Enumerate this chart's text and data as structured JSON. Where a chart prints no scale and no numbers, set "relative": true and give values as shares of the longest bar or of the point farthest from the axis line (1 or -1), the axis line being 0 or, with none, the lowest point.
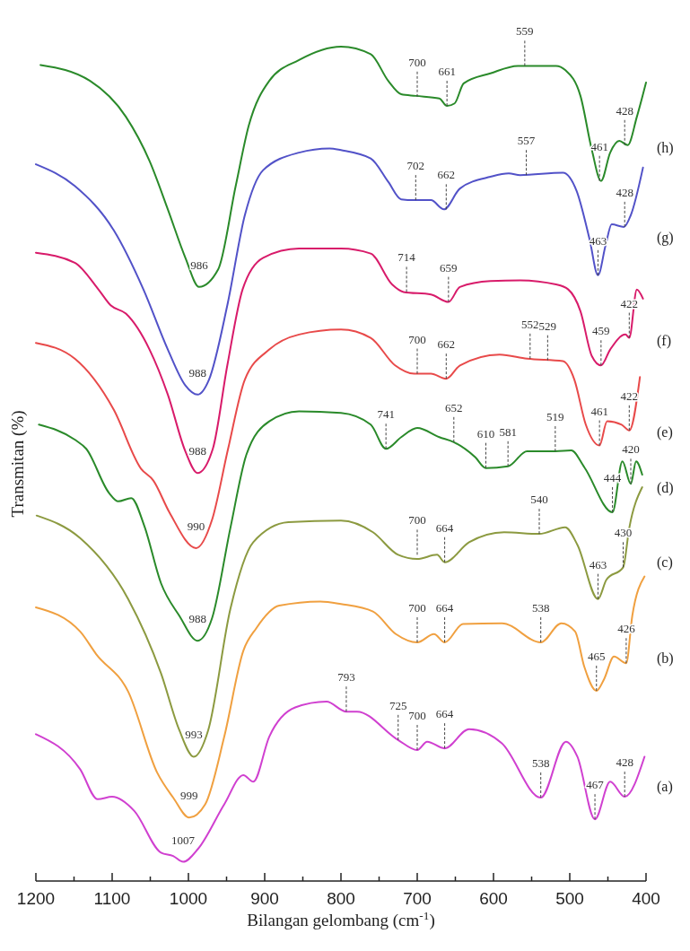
{
  "chart_data": {
    "type": "line",
    "relative": true,
    "xlabel": "Bilangan gelombang (cm$^{-1}$)",
    "ylabel": "Transmitan (%)",
    "xlim": [
      1200,
      400
    ],
    "xticks": [
      1200,
      {
        "value": 1150,
        "label": null
      },
      1100,
      {
        "value": 1050,
        "label": null
      },
      1000,
      {
        "value": 950,
        "label": null
      },
      900,
      {
        "value": 850,
        "label": null
      },
      800,
      {
        "value": 750,
        "label": null
      },
      700,
      {
        "value": 650,
        "label": null
      },
      600,
      {
        "value": 550,
        "label": null
      },
      500,
      {
        "value": 450,
        "label": null
      },
      400
    ],
    "grid": false,
    "marker": "none",
    "line_style": "solid",
    "series": [
      {
        "name": "(a)",
        "color": "#d040d0",
        "x": [
          1200,
          1142,
          1119,
          1100,
          1071,
          1036,
          1020,
          1007,
          987,
          953,
          928,
          915,
          894,
          860,
          819,
          793,
          779,
          725,
          700,
          687,
          664,
          632,
          589,
          538,
          505,
          490,
          467,
          447,
          428,
          402
        ],
        "values": [
          0.176,
          0.134,
          0.098,
          0.101,
          0.084,
          0.034,
          0.03,
          0.023,
          0.039,
          0.092,
          0.127,
          0.119,
          0.173,
          0.208,
          0.215,
          0.203,
          0.203,
          0.169,
          0.157,
          0.167,
          0.159,
          0.182,
          0.165,
          0.1,
          0.167,
          0.149,
          0.074,
          0.119,
          0.101,
          0.149
        ]
      },
      {
        "name": "(b)",
        "color": "#f0a040",
        "x": [
          1200,
          1142,
          1121,
          1079,
          1041,
          1020,
          999,
          978,
          953,
          928,
          911,
          881,
          827,
          800,
          758,
          728,
          700,
          678,
          664,
          640,
          589,
          538,
          511,
          493,
          481,
          465,
          455,
          442,
          426,
          418,
          402
        ],
        "values": [
          0.328,
          0.299,
          0.272,
          0.227,
          0.13,
          0.1,
          0.076,
          0.092,
          0.173,
          0.276,
          0.303,
          0.33,
          0.335,
          0.332,
          0.323,
          0.296,
          0.286,
          0.296,
          0.286,
          0.308,
          0.309,
          0.286,
          0.309,
          0.299,
          0.257,
          0.228,
          0.242,
          0.269,
          0.261,
          0.318,
          0.365
        ]
      },
      {
        "name": "(c)",
        "color": "#8c9a40",
        "x": [
          1199,
          1142,
          1079,
          1036,
          1012,
          993,
          974,
          945,
          915,
          869,
          800,
          758,
          725,
          700,
          674,
          664,
          632,
          586,
          540,
          506,
          490,
          463,
          452,
          430,
          422,
          405
        ],
        "values": [
          0.438,
          0.411,
          0.338,
          0.249,
          0.181,
          0.149,
          0.181,
          0.326,
          0.406,
          0.43,
          0.432,
          0.418,
          0.391,
          0.386,
          0.391,
          0.382,
          0.406,
          0.418,
          0.416,
          0.424,
          0.403,
          0.338,
          0.361,
          0.376,
          0.423,
          0.472
        ]
      },
      {
        "name": "(d)",
        "color": "#2a8a2a",
        "x": [
          1196,
          1149,
          1134,
          1104,
          1092,
          1075,
          1058,
          1036,
          1012,
          988,
          969,
          945,
          924,
          894,
          855,
          800,
          761,
          741,
          721,
          700,
          671,
          652,
          624,
          610,
          581,
          556,
          519,
          498,
          481,
          444,
          431,
          420,
          413,
          405
        ],
        "values": [
          0.547,
          0.529,
          0.518,
          0.465,
          0.455,
          0.459,
          0.426,
          0.357,
          0.318,
          0.288,
          0.315,
          0.423,
          0.511,
          0.551,
          0.563,
          0.561,
          0.547,
          0.518,
          0.532,
          0.543,
          0.532,
          0.526,
          0.508,
          0.495,
          0.497,
          0.515,
          0.515,
          0.516,
          0.496,
          0.442,
          0.503,
          0.476,
          0.503,
          0.487
        ]
      },
      {
        "name": "(e)",
        "color": "#e84a4a",
        "x": [
          1200,
          1149,
          1098,
          1062,
          1046,
          1025,
          990,
          969,
          948,
          926,
          894,
          855,
          800,
          761,
          729,
          704,
          682,
          662,
          644,
          592,
          556,
          509,
          494,
          479,
          461,
          451,
          432,
          422,
          408
        ],
        "values": [
          0.645,
          0.626,
          0.565,
          0.494,
          0.48,
          0.442,
          0.399,
          0.433,
          0.518,
          0.601,
          0.637,
          0.655,
          0.661,
          0.651,
          0.618,
          0.608,
          0.608,
          0.602,
          0.618,
          0.631,
          0.626,
          0.623,
          0.601,
          0.547,
          0.522,
          0.551,
          0.547,
          0.54,
          0.604
        ]
      },
      {
        "name": "(f)",
        "color": "#d81b6a",
        "x": [
          1200,
          1149,
          1118,
          1102,
          1082,
          1051,
          1027,
          1004,
          988,
          968,
          949,
          929,
          902,
          855,
          800,
          761,
          733,
          718,
          682,
          659,
          644,
          604,
          565,
          518,
          502,
          486,
          471,
          459,
          447,
          427,
          422,
          412,
          404
        ],
        "values": [
          0.753,
          0.741,
          0.709,
          0.69,
          0.68,
          0.637,
          0.583,
          0.515,
          0.489,
          0.518,
          0.618,
          0.709,
          0.747,
          0.758,
          0.758,
          0.752,
          0.715,
          0.706,
          0.703,
          0.694,
          0.712,
          0.719,
          0.72,
          0.715,
          0.709,
          0.683,
          0.629,
          0.618,
          0.637,
          0.655,
          0.651,
          0.709,
          0.698
        ]
      },
      {
        "name": "(g)",
        "color": "#5252c8",
        "x": [
          1200,
          1149,
          1098,
          1059,
          1027,
          1004,
          988,
          973,
          949,
          926,
          902,
          855,
          815,
          800,
          761,
          738,
          721,
          704,
          682,
          665,
          644,
          604,
          580,
          565,
          509,
          491,
          474,
          463,
          453,
          445,
          429,
          420,
          404
        ],
        "values": [
          0.859,
          0.833,
          0.78,
          0.709,
          0.637,
          0.594,
          0.583,
          0.601,
          0.69,
          0.798,
          0.852,
          0.873,
          0.878,
          0.876,
          0.866,
          0.838,
          0.817,
          0.816,
          0.816,
          0.805,
          0.83,
          0.844,
          0.848,
          0.846,
          0.849,
          0.827,
          0.769,
          0.726,
          0.762,
          0.787,
          0.784,
          0.798,
          0.855
        ]
      },
      {
        "name": "(h)",
        "color": "#2a8a2a",
        "x": [
          1194,
          1129,
          1082,
          1051,
          1027,
          1004,
          986,
          961,
          938,
          921,
          894,
          855,
          800,
          761,
          738,
          721,
          702,
          671,
          661,
          651,
          639,
          604,
          568,
          518,
          506,
          486,
          471,
          459,
          447,
          435,
          424,
          412,
          400
        ],
        "values": [
          0.978,
          0.959,
          0.916,
          0.863,
          0.805,
          0.747,
          0.712,
          0.733,
          0.833,
          0.905,
          0.959,
          0.984,
          1.0,
          0.991,
          0.959,
          0.943,
          0.941,
          0.938,
          0.929,
          0.932,
          0.956,
          0.968,
          0.977,
          0.977,
          0.972,
          0.941,
          0.876,
          0.839,
          0.873,
          0.887,
          0.882,
          0.916,
          0.957
        ]
      }
    ],
    "annotations": [
      {
        "text": "700",
        "x": 700,
        "y": 0.94
      },
      {
        "text": "661",
        "x": 661,
        "y": 0.929
      },
      {
        "text": "559",
        "x": 559,
        "y": 0.977
      },
      {
        "text": "461",
        "x": 461,
        "y": 0.839
      },
      {
        "text": "428",
        "x": 428,
        "y": 0.882
      },
      {
        "text": "986",
        "x": 986,
        "y": 0.712
      },
      {
        "text": "702",
        "x": 702,
        "y": 0.816
      },
      {
        "text": "662",
        "x": 662,
        "y": 0.805
      },
      {
        "text": "557",
        "x": 557,
        "y": 0.846
      },
      {
        "text": "463",
        "x": 463,
        "y": 0.726
      },
      {
        "text": "428",
        "x": 428,
        "y": 0.784
      },
      {
        "text": "988",
        "x": 988,
        "y": 0.583
      },
      {
        "text": "714",
        "x": 714,
        "y": 0.706
      },
      {
        "text": "659",
        "x": 659,
        "y": 0.694
      },
      {
        "text": "459",
        "x": 459,
        "y": 0.618
      },
      {
        "text": "422",
        "x": 422,
        "y": 0.651
      },
      {
        "text": "988",
        "x": 988,
        "y": 0.489
      },
      {
        "text": "700",
        "x": 700,
        "y": 0.608
      },
      {
        "text": "662",
        "x": 662,
        "y": 0.602
      },
      {
        "text": "552",
        "x": 552,
        "y": 0.626
      },
      {
        "text": "529",
        "x": 529,
        "y": 0.624
      },
      {
        "text": "461",
        "x": 461,
        "y": 0.522
      },
      {
        "text": "422",
        "x": 422,
        "y": 0.54
      },
      {
        "text": "990",
        "x": 990,
        "y": 0.399
      },
      {
        "text": "741",
        "x": 741,
        "y": 0.518
      },
      {
        "text": "652",
        "x": 652,
        "y": 0.526
      },
      {
        "text": "610",
        "x": 610,
        "y": 0.495
      },
      {
        "text": "581",
        "x": 581,
        "y": 0.497
      },
      {
        "text": "519",
        "x": 519,
        "y": 0.515
      },
      {
        "text": "444",
        "x": 444,
        "y": 0.442
      },
      {
        "text": "420",
        "x": 420,
        "y": 0.476
      },
      {
        "text": "988",
        "x": 988,
        "y": 0.288
      },
      {
        "text": "700",
        "x": 700,
        "y": 0.391
      },
      {
        "text": "664",
        "x": 664,
        "y": 0.382
      },
      {
        "text": "540",
        "x": 540,
        "y": 0.416
      },
      {
        "text": "463",
        "x": 463,
        "y": 0.338
      },
      {
        "text": "430",
        "x": 430,
        "y": 0.376
      },
      {
        "text": "993",
        "x": 993,
        "y": 0.149
      },
      {
        "text": "700",
        "x": 700,
        "y": 0.286
      },
      {
        "text": "664",
        "x": 664,
        "y": 0.286
      },
      {
        "text": "538",
        "x": 538,
        "y": 0.286
      },
      {
        "text": "465",
        "x": 465,
        "y": 0.228
      },
      {
        "text": "426",
        "x": 426,
        "y": 0.261
      },
      {
        "text": "999",
        "x": 999,
        "y": 0.076
      },
      {
        "text": "793",
        "x": 793,
        "y": 0.203
      },
      {
        "text": "725",
        "x": 725,
        "y": 0.169
      },
      {
        "text": "700",
        "x": 700,
        "y": 0.157
      },
      {
        "text": "664",
        "x": 664,
        "y": 0.159
      },
      {
        "text": "538",
        "x": 538,
        "y": 0.1
      },
      {
        "text": "467",
        "x": 467,
        "y": 0.074
      },
      {
        "text": "428",
        "x": 428,
        "y": 0.101
      },
      {
        "text": "1007",
        "x": 1007,
        "y": 0.023
      }
    ]
  }
}
